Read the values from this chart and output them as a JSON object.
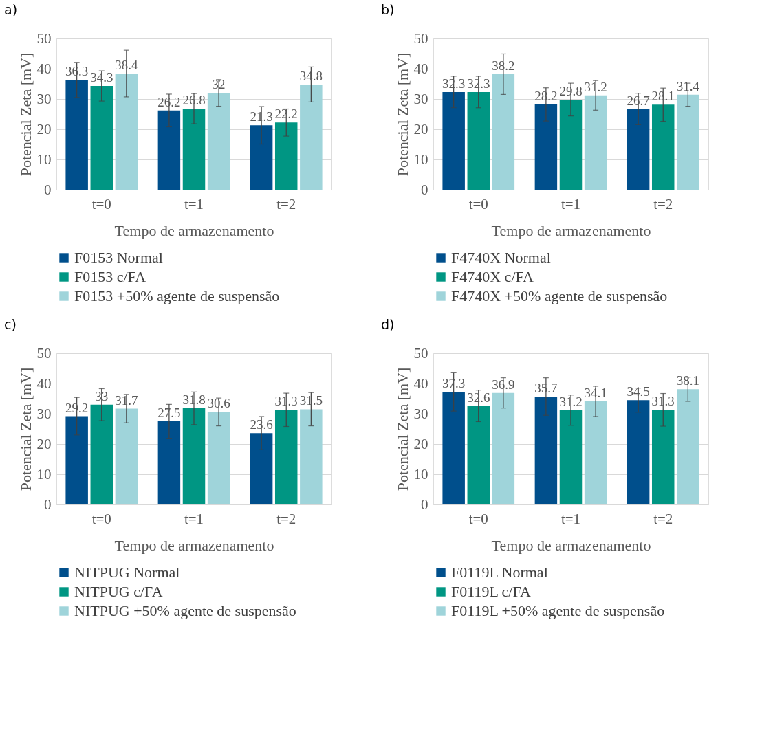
{
  "chart_data": [
    {
      "type": "bar",
      "title": "a)",
      "xlabel": "Tempo de armazenamento",
      "ylabel": "Potencial Zeta [mV]",
      "categories": [
        "t=0",
        "t=1",
        "t=2"
      ],
      "ylim": [
        0,
        50
      ],
      "yticks": [
        0,
        10,
        20,
        30,
        40,
        50
      ],
      "grid": "y",
      "legend": "bottom",
      "data_labels": true,
      "series": [
        {
          "name": "F0153 Normal",
          "color": "#004f8c",
          "values": [
            36.3,
            26.2,
            21.3
          ],
          "errors": [
            5.8,
            5.4,
            6.2
          ]
        },
        {
          "name": "F0153 c/FA",
          "color": "#009683",
          "values": [
            34.3,
            26.8,
            22.2
          ],
          "errors": [
            5,
            5,
            4.5
          ]
        },
        {
          "name": "F0153 +50% agente de suspensão",
          "color": "#9fd4da",
          "values": [
            38.4,
            32,
            34.8
          ],
          "errors": [
            7.7,
            4.4,
            5.8
          ]
        }
      ]
    },
    {
      "type": "bar",
      "title": "b)",
      "xlabel": "Tempo de armazenamento",
      "ylabel": "Potencial Zeta [mV]",
      "categories": [
        "t=0",
        "t=1",
        "t=2"
      ],
      "ylim": [
        0,
        50
      ],
      "yticks": [
        0,
        10,
        20,
        30,
        40,
        50
      ],
      "grid": "y",
      "legend": "bottom",
      "data_labels": true,
      "series": [
        {
          "name": "F4740X Normal",
          "color": "#004f8c",
          "values": [
            32.3,
            28.2,
            26.7
          ],
          "errors": [
            5.2,
            5.5,
            5.2
          ]
        },
        {
          "name": "F4740X c/FA",
          "color": "#009683",
          "values": [
            32.3,
            29.8,
            28.1
          ],
          "errors": [
            5.2,
            5.4,
            5.5
          ]
        },
        {
          "name": "F4740X +50% agente de suspensão",
          "color": "#9fd4da",
          "values": [
            38.2,
            31.2,
            31.4
          ],
          "errors": [
            6.7,
            4.9,
            3.8
          ]
        }
      ]
    },
    {
      "type": "bar",
      "title": "c)",
      "xlabel": "Tempo de armazenamento",
      "ylabel": "Potencial Zeta [mV]",
      "categories": [
        "t=0",
        "t=1",
        "t=2"
      ],
      "ylim": [
        0,
        50
      ],
      "yticks": [
        0,
        10,
        20,
        30,
        40,
        50
      ],
      "grid": "y",
      "legend": "bottom",
      "data_labels": true,
      "series": [
        {
          "name": "NITPUG Normal",
          "color": "#004f8c",
          "values": [
            29.2,
            27.5,
            23.6
          ],
          "errors": [
            6.2,
            5.6,
            5.5
          ]
        },
        {
          "name": "NITPUG c/FA",
          "color": "#009683",
          "values": [
            33,
            31.8,
            31.3
          ],
          "errors": [
            5.3,
            5.4,
            5.5
          ]
        },
        {
          "name": "NITPUG +50% agente de suspensão",
          "color": "#9fd4da",
          "values": [
            31.7,
            30.6,
            31.5
          ],
          "errors": [
            4.7,
            4.6,
            5.5
          ]
        }
      ]
    },
    {
      "type": "bar",
      "title": "d)",
      "xlabel": "Tempo de armazenamento",
      "ylabel": "Potencial Zeta [mV]",
      "categories": [
        "t=0",
        "t=1",
        "t=2"
      ],
      "ylim": [
        0,
        50
      ],
      "yticks": [
        0,
        10,
        20,
        30,
        40,
        50
      ],
      "grid": "y",
      "legend": "bottom",
      "data_labels": true,
      "series": [
        {
          "name": "F0119L Normal",
          "color": "#004f8c",
          "values": [
            37.3,
            35.7,
            34.5
          ],
          "errors": [
            6.4,
            6.2,
            4
          ]
        },
        {
          "name": "F0119L c/FA",
          "color": "#009683",
          "values": [
            32.6,
            31.2,
            31.3
          ],
          "errors": [
            5.2,
            5,
            5.4
          ]
        },
        {
          "name": "F0119L +50% agente de suspensão",
          "color": "#9fd4da",
          "values": [
            36.9,
            34.1,
            38.1
          ],
          "errors": [
            5,
            5,
            4
          ]
        }
      ]
    }
  ]
}
